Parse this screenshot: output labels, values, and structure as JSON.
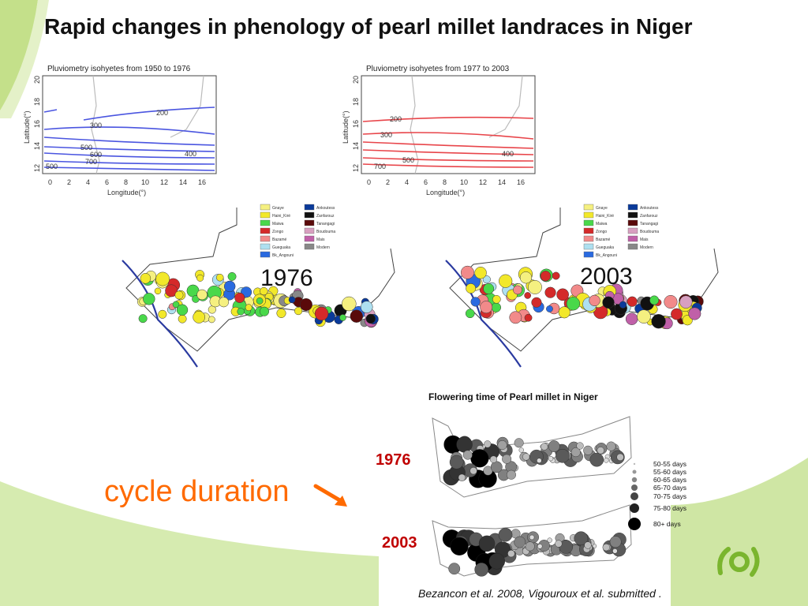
{
  "slide": {
    "title": "Rapid changes in phenology of pearl millet landraces in Niger",
    "cycle_label": "cycle duration",
    "citation": "Bezancon et al. 2008, Vigouroux et al. submitted ."
  },
  "isohyet_panels": [
    {
      "caption": "Pluviometry isohyetes from 1950 to 1976",
      "color": "#4a55e0",
      "xlabel": "Longitude(°)",
      "ylabel": "Latitude(°)",
      "x_ticks": [
        "0",
        "2",
        "4",
        "6",
        "8",
        "10",
        "12",
        "14",
        "16"
      ],
      "y_ticks": [
        "12",
        "14",
        "16",
        "18",
        "20"
      ],
      "contour_labels": [
        "200",
        "300",
        "400",
        "500",
        "600",
        "700",
        "500"
      ]
    },
    {
      "caption": "Pluviometry isohyetes from 1977 to 2003",
      "color": "#e8454a",
      "xlabel": "Longitude(°)",
      "ylabel": "Latitude(°)",
      "x_ticks": [
        "0",
        "2",
        "4",
        "6",
        "8",
        "10",
        "12",
        "14",
        "16"
      ],
      "y_ticks": [
        "12",
        "14",
        "16",
        "18",
        "20"
      ],
      "contour_labels": [
        "200",
        "300",
        "400",
        "500",
        "700"
      ]
    }
  ],
  "landrace_maps": [
    {
      "year": "1976"
    },
    {
      "year": "2003"
    }
  ],
  "landrace_legend": [
    {
      "label": "Gnaye",
      "color": "#f5f080"
    },
    {
      "label": "Haini_Kiré",
      "color": "#f2e82a"
    },
    {
      "label": "Maiwa",
      "color": "#49d84a"
    },
    {
      "label": "Zongo",
      "color": "#d42a2a"
    },
    {
      "label": "Bazamé",
      "color": "#f28a8a"
    },
    {
      "label": "Gueguaka",
      "color": "#aee0f0"
    },
    {
      "label": "Bk_Angouni",
      "color": "#2a6ae0"
    },
    {
      "label": "Ankoutess",
      "color": "#0a3a9a"
    },
    {
      "label": "Zanfarouz",
      "color": "#111111"
    },
    {
      "label": "Tanangagi",
      "color": "#5a0a0a"
    },
    {
      "label": "Boudouma",
      "color": "#d8a0c0"
    },
    {
      "label": "Mais",
      "color": "#c060a8"
    },
    {
      "label": "Modern",
      "color": "#888888"
    }
  ],
  "flowering": {
    "title": "Flowering time of Pearl millet in Niger",
    "years": [
      "1976",
      "2003"
    ],
    "legend": [
      "50-55 days",
      "55-60 days",
      "60-65 days",
      "65-70 days",
      "70-75 days",
      "75-80 days",
      "80+ days"
    ]
  }
}
